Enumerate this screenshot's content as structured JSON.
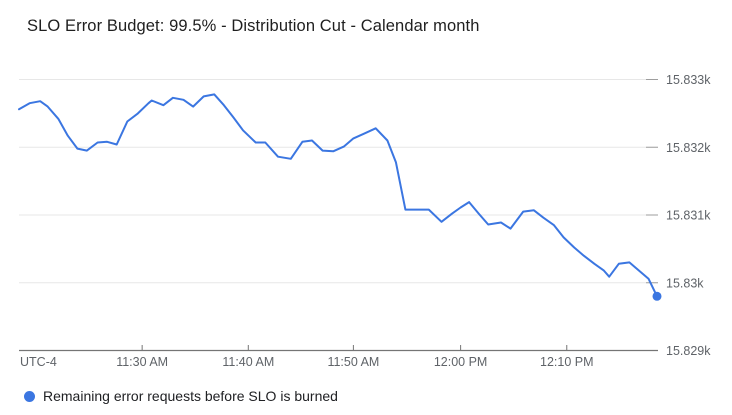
{
  "title": "SLO Error Budget: 99.5% - Distribution Cut - Calendar month",
  "legend": {
    "label": "Remaining error requests before SLO is burned",
    "marker": "filled-circle"
  },
  "axes": {
    "x": {
      "timezone_label": "UTC-4",
      "tick_labels": [
        "11:30 AM",
        "11:40 AM",
        "11:50 AM",
        "12:00 PM",
        "12:10 PM"
      ],
      "tick_minutes": [
        11.6,
        21.6,
        31.5,
        41.6,
        51.6
      ]
    },
    "y": {
      "side": "right",
      "tick_labels": [
        "15.829k",
        "15.83k",
        "15.831k",
        "15.832k",
        "15.833k"
      ],
      "tick_values": [
        15829,
        15830,
        15831,
        15832,
        15833
      ]
    }
  },
  "colors": {
    "series_blue": "#3b76e1",
    "grid": "#e7e7e7",
    "grid_tick_stub": "#9e9e9e",
    "axis_line": "#757575",
    "tick_label": "#5f6368",
    "title_text": "#1f1f1f",
    "legend_text": "#202124",
    "background": "#ffffff"
  },
  "chart_data": {
    "type": "line",
    "title": "SLO Error Budget: 99.5% - Distribution Cut - Calendar month",
    "xlabel": "time of day (UTC-4)",
    "ylabel": "remaining error requests",
    "x_unit": "minutes from chart start (~11:18 AM)",
    "xlim": [
      0,
      60.1
    ],
    "ylim": [
      15829,
      15833.3
    ],
    "y_ticks": [
      15829,
      15830,
      15831,
      15832,
      15833
    ],
    "x_tick_labels": [
      "11:30 AM",
      "11:40 AM",
      "11:50 AM",
      "12:00 PM",
      "12:10 PM"
    ],
    "grid": "horizontal",
    "legend_position": "bottom-left",
    "series": [
      {
        "name": "Remaining error requests before SLO is burned",
        "endpoint_marker": true,
        "points": [
          [
            0,
            15832.56
          ],
          [
            1,
            15832.65
          ],
          [
            2,
            15832.68
          ],
          [
            2.7,
            15832.6
          ],
          [
            3.7,
            15832.42
          ],
          [
            4.6,
            15832.17
          ],
          [
            5.5,
            15831.98
          ],
          [
            6.4,
            15831.95
          ],
          [
            7.4,
            15832.07
          ],
          [
            8.3,
            15832.08
          ],
          [
            9.2,
            15832.04
          ],
          [
            10.2,
            15832.38
          ],
          [
            11.2,
            15832.5
          ],
          [
            12.2,
            15832.65
          ],
          [
            12.5,
            15832.69
          ],
          [
            13.6,
            15832.62
          ],
          [
            14.5,
            15832.73
          ],
          [
            15.5,
            15832.7
          ],
          [
            16.4,
            15832.6
          ],
          [
            17.4,
            15832.75
          ],
          [
            18.4,
            15832.78
          ],
          [
            19.3,
            15832.62
          ],
          [
            20.2,
            15832.44
          ],
          [
            21.1,
            15832.25
          ],
          [
            22.3,
            15832.07
          ],
          [
            23.2,
            15832.07
          ],
          [
            24.4,
            15831.86
          ],
          [
            25.6,
            15831.83
          ],
          [
            26.7,
            15832.08
          ],
          [
            27.6,
            15832.1
          ],
          [
            28.6,
            15831.95
          ],
          [
            29.6,
            15831.94
          ],
          [
            30.6,
            15832.01
          ],
          [
            31.5,
            15832.13
          ],
          [
            32.5,
            15832.2
          ],
          [
            33.6,
            15832.28
          ],
          [
            34.7,
            15832.1
          ],
          [
            35.5,
            15831.78
          ],
          [
            36.4,
            15831.08
          ],
          [
            37.5,
            15831.08
          ],
          [
            38.6,
            15831.08
          ],
          [
            39.8,
            15830.9
          ],
          [
            40.8,
            15831.02
          ],
          [
            41.6,
            15831.11
          ],
          [
            42.4,
            15831.19
          ],
          [
            43.3,
            15831.02
          ],
          [
            44.2,
            15830.86
          ],
          [
            45.4,
            15830.89
          ],
          [
            46.3,
            15830.8
          ],
          [
            47.5,
            15831.05
          ],
          [
            48.5,
            15831.07
          ],
          [
            49.4,
            15830.96
          ],
          [
            50.4,
            15830.85
          ],
          [
            51.3,
            15830.67
          ],
          [
            52.3,
            15830.52
          ],
          [
            53.2,
            15830.4
          ],
          [
            54.2,
            15830.28
          ],
          [
            55.1,
            15830.18
          ],
          [
            55.6,
            15830.09
          ],
          [
            56.5,
            15830.28
          ],
          [
            57.5,
            15830.3
          ],
          [
            58.4,
            15830.18
          ],
          [
            59.3,
            15830.06
          ],
          [
            60.1,
            15829.8
          ]
        ]
      }
    ]
  }
}
